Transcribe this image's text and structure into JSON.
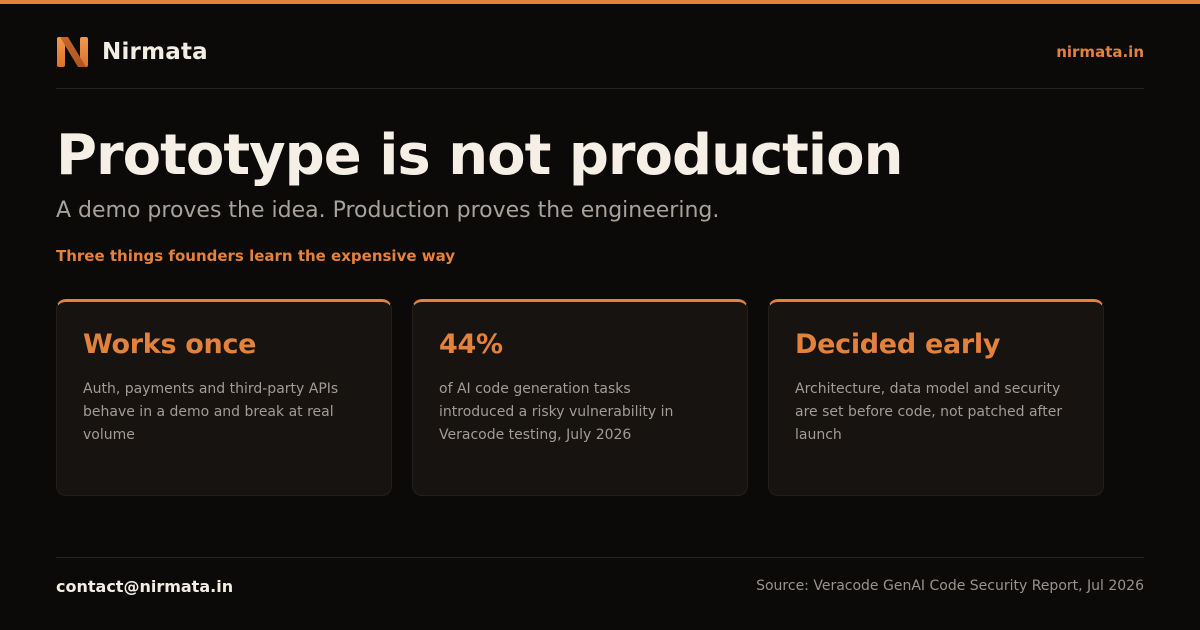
{
  "brand": {
    "name": "Nirmata",
    "logo_letter": "N",
    "site": "nirmata.in",
    "accent_color": "#e2823d"
  },
  "hero": {
    "headline": "Prototype is not production",
    "subhead": "A demo proves the idea. Production proves the engineering.",
    "kicker": "Three things founders learn the expensive way"
  },
  "cards": [
    {
      "title": "Works once",
      "text": "Auth, payments and third-party APIs behave in a demo and break at real volume"
    },
    {
      "title": "44%",
      "text": "of AI code generation tasks introduced a risky vulnerability in Veracode testing, July 2026"
    },
    {
      "title": "Decided early",
      "text": "Architecture, data model and security are set before code, not patched after launch"
    }
  ],
  "footer": {
    "contact": "contact@nirmata.in",
    "source": "Source: Veracode GenAI Code Security Report, Jul 2026"
  }
}
